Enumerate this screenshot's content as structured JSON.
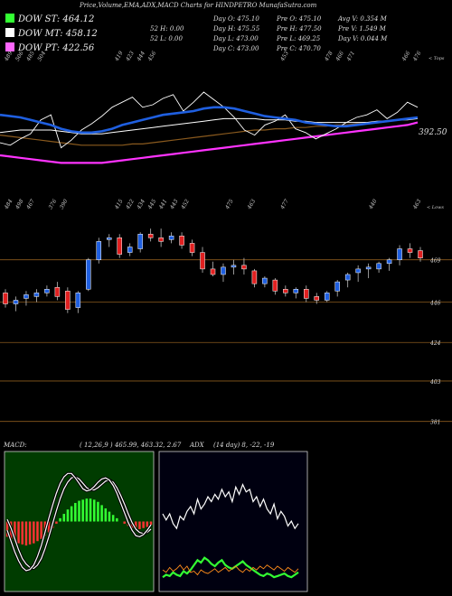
{
  "header": {
    "title": "Price,Volume,EMA,ADX,MACD Charts for HINDPETRO MunafaSutra.com",
    "stats": [
      [
        "Day O: 475.10",
        "Pre O: 475.10",
        "Avg V: 0.354  M"
      ],
      [
        "52 H: 0.00",
        "Day H: 475.55",
        "Pre H: 477.50",
        "Pre V: 1.549 M"
      ],
      [
        "52 L: 0.00",
        "Day L: 473.00",
        "Pre L: 469.25",
        "Day V: 0.044  M"
      ],
      [
        "Day C: 473.00",
        "Pre C: 470.70"
      ]
    ]
  },
  "legend": [
    {
      "label": "DOW ST: 464.12",
      "color": "#33ff33"
    },
    {
      "label": "DOW MT: 458.12",
      "color": "#ffffff"
    },
    {
      "label": "DOW PT: 422.56",
      "color": "#ff66ff"
    }
  ],
  "price_label": "392.50",
  "top_corner": "< Tops",
  "low_corner": "< Lows",
  "macd_label": "MACD:",
  "macd_params": "( 12,26,9 ) 465.99, 463.32, 2.67",
  "adx_label": "ADX",
  "adx_params": "(14  day) 8, -22, -19",
  "colors": {
    "up": "#1f5fe0",
    "down": "#e02020",
    "grid": "#8a5a1e"
  },
  "chart_data": [
    {
      "type": "line",
      "name": "EMA panel",
      "top_labels": [
        "489",
        "506",
        "485",
        "504",
        "",
        "",
        "",
        "",
        "",
        "",
        "419",
        "423",
        "444",
        "456",
        "",
        "",
        "",
        "",
        "",
        "",
        "",
        "",
        "",
        "",
        "",
        "453",
        "",
        "",
        "",
        "478",
        "466",
        "471",
        "",
        "",
        "",
        "",
        "466",
        "476"
      ],
      "low_labels": [
        "484",
        "498",
        "467",
        "",
        "376",
        "390",
        "",
        "",
        "",
        "",
        "415",
        "422",
        "434",
        "445",
        "441",
        "443",
        "452",
        "",
        "",
        "",
        "475",
        "",
        "463",
        "",
        "",
        "477",
        "",
        "",
        "",
        "",
        "",
        "",
        "",
        "440",
        "",
        "",
        "",
        "463"
      ],
      "close": [
        430,
        428,
        433,
        437,
        448,
        452,
        426,
        432,
        440,
        445,
        451,
        458,
        462,
        466,
        458,
        460,
        465,
        468,
        455,
        462,
        470,
        464,
        458,
        450,
        440,
        436,
        444,
        447,
        452,
        441,
        438,
        433,
        437,
        441,
        446,
        450,
        452,
        456,
        449,
        454,
        462,
        458
      ],
      "ema_short": [
        452,
        451,
        450,
        448,
        446,
        444,
        441,
        439,
        438,
        438,
        439,
        441,
        444,
        446,
        448,
        450,
        452,
        453,
        454,
        455,
        457,
        458,
        458,
        457,
        455,
        453,
        451,
        450,
        449,
        448,
        446,
        445,
        444,
        443,
        443,
        444,
        445,
        446,
        447,
        448,
        449,
        450
      ],
      "ema_mid": [
        438,
        439,
        440,
        440,
        440,
        440,
        439,
        438,
        437,
        437,
        437,
        438,
        439,
        440,
        441,
        442,
        443,
        444,
        445,
        446,
        447,
        448,
        449,
        449,
        449,
        449,
        448,
        448,
        448,
        447,
        447,
        446,
        446,
        446,
        446,
        446,
        446,
        447,
        447,
        448,
        448,
        449
      ],
      "ema_long": [
        436,
        435,
        434,
        433,
        432,
        431,
        430,
        429,
        428,
        428,
        428,
        428,
        428,
        429,
        429,
        430,
        431,
        432,
        433,
        434,
        435,
        436,
        437,
        438,
        439,
        440,
        440,
        441,
        441,
        442,
        442,
        443,
        443,
        444,
        444,
        445,
        445,
        446,
        447,
        448,
        449,
        450
      ],
      "ema_pt": [
        420,
        419,
        418,
        417,
        416,
        415,
        414,
        414,
        414,
        414,
        414,
        415,
        416,
        417,
        418,
        419,
        420,
        421,
        422,
        423,
        424,
        425,
        426,
        427,
        428,
        429,
        430,
        431,
        432,
        433,
        434,
        435,
        436,
        437,
        438,
        439,
        440,
        441,
        442,
        443,
        444,
        446
      ],
      "ylim": [
        400,
        475
      ]
    },
    {
      "type": "candlestick",
      "name": "Price panel",
      "y_tick_labels": [
        "469",
        "446",
        "424",
        "403",
        "381"
      ],
      "y_ticks": [
        469,
        446,
        424,
        403,
        381
      ],
      "ylim": [
        372,
        490
      ],
      "candles": [
        {
          "o": 451,
          "h": 453,
          "l": 443,
          "c": 445
        },
        {
          "o": 445,
          "h": 449,
          "l": 441,
          "c": 447
        },
        {
          "o": 448,
          "h": 452,
          "l": 444,
          "c": 450
        },
        {
          "o": 449,
          "h": 453,
          "l": 446,
          "c": 451
        },
        {
          "o": 451,
          "h": 455,
          "l": 449,
          "c": 453
        },
        {
          "o": 454,
          "h": 457,
          "l": 447,
          "c": 449
        },
        {
          "o": 452,
          "h": 454,
          "l": 440,
          "c": 442
        },
        {
          "o": 443,
          "h": 452,
          "l": 440,
          "c": 451
        },
        {
          "o": 453,
          "h": 470,
          "l": 452,
          "c": 469
        },
        {
          "o": 469,
          "h": 481,
          "l": 467,
          "c": 479
        },
        {
          "o": 480,
          "h": 483,
          "l": 476,
          "c": 481
        },
        {
          "o": 481,
          "h": 483,
          "l": 470,
          "c": 472
        },
        {
          "o": 473,
          "h": 478,
          "l": 471,
          "c": 476
        },
        {
          "o": 475,
          "h": 484,
          "l": 473,
          "c": 483
        },
        {
          "o": 483,
          "h": 486,
          "l": 479,
          "c": 481
        },
        {
          "o": 481,
          "h": 486,
          "l": 476,
          "c": 479
        },
        {
          "o": 480,
          "h": 484,
          "l": 478,
          "c": 482
        },
        {
          "o": 482,
          "h": 484,
          "l": 475,
          "c": 477
        },
        {
          "o": 478,
          "h": 480,
          "l": 471,
          "c": 473
        },
        {
          "o": 473,
          "h": 476,
          "l": 462,
          "c": 464
        },
        {
          "o": 464,
          "h": 468,
          "l": 460,
          "c": 461
        },
        {
          "o": 461,
          "h": 467,
          "l": 457,
          "c": 465
        },
        {
          "o": 465,
          "h": 469,
          "l": 461,
          "c": 466
        },
        {
          "o": 466,
          "h": 470,
          "l": 461,
          "c": 464
        },
        {
          "o": 463,
          "h": 464,
          "l": 454,
          "c": 456
        },
        {
          "o": 456,
          "h": 460,
          "l": 454,
          "c": 459
        },
        {
          "o": 458,
          "h": 459,
          "l": 450,
          "c": 452
        },
        {
          "o": 453,
          "h": 455,
          "l": 449,
          "c": 451
        },
        {
          "o": 451,
          "h": 454,
          "l": 448,
          "c": 453
        },
        {
          "o": 453,
          "h": 455,
          "l": 446,
          "c": 448
        },
        {
          "o": 449,
          "h": 451,
          "l": 445,
          "c": 447
        },
        {
          "o": 447,
          "h": 452,
          "l": 446,
          "c": 451
        },
        {
          "o": 452,
          "h": 458,
          "l": 449,
          "c": 457
        },
        {
          "o": 458,
          "h": 462,
          "l": 454,
          "c": 461
        },
        {
          "o": 462,
          "h": 466,
          "l": 457,
          "c": 464
        },
        {
          "o": 464,
          "h": 467,
          "l": 459,
          "c": 465
        },
        {
          "o": 464,
          "h": 468,
          "l": 462,
          "c": 467
        },
        {
          "o": 467,
          "h": 470,
          "l": 463,
          "c": 469
        },
        {
          "o": 469,
          "h": 477,
          "l": 466,
          "c": 475
        },
        {
          "o": 475,
          "h": 478,
          "l": 470,
          "c": 473
        },
        {
          "o": 474,
          "h": 476,
          "l": 468,
          "c": 470
        }
      ]
    },
    {
      "type": "bar",
      "name": "MACD histogram",
      "values": [
        -1.4,
        -1.6,
        -1.8,
        -2.0,
        -2.1,
        -2.2,
        -2.1,
        -2.0,
        -1.8,
        -1.6,
        -1.3,
        -1.0,
        -0.6,
        -0.2,
        0.3,
        0.7,
        1.1,
        1.4,
        1.7,
        1.9,
        2.0,
        2.1,
        2.1,
        2.0,
        1.8,
        1.5,
        1.2,
        0.9,
        0.6,
        0.3,
        0,
        -0.2,
        -0.4,
        -0.6,
        -0.7,
        -0.7,
        -0.6,
        -0.5,
        -0.3
      ],
      "macd": [
        -0.8,
        -1.8,
        -2.8,
        -3.6,
        -4.2,
        -4.5,
        -4.4,
        -4.0,
        -3.2,
        -2.2,
        -1.0,
        0.3,
        1.5,
        2.6,
        3.5,
        4.1,
        4.4,
        4.4,
        4.0,
        3.5,
        3.0,
        2.8,
        2.9,
        3.2,
        3.6,
        3.9,
        4.0,
        3.8,
        3.3,
        2.6,
        1.7,
        0.8,
        -0.1,
        -0.8,
        -1.3,
        -1.4,
        -1.2,
        -0.8,
        -0.3
      ],
      "signal": [
        0.2,
        -0.6,
        -1.6,
        -2.6,
        -3.4,
        -3.9,
        -4.2,
        -4.3,
        -4.0,
        -3.4,
        -2.5,
        -1.4,
        -0.2,
        1.0,
        2.1,
        3.0,
        3.6,
        4.0,
        4.1,
        3.9,
        3.5,
        3.1,
        2.9,
        2.9,
        3.1,
        3.4,
        3.7,
        3.8,
        3.6,
        3.1,
        2.4,
        1.6,
        0.7,
        -0.1,
        -0.7,
        -1.0,
        -1.1,
        -1.0,
        -0.7
      ],
      "ylim": [
        -6,
        6
      ]
    },
    {
      "type": "line",
      "name": "ADX",
      "series": [
        {
          "values": [
            60,
            55,
            60,
            52,
            48,
            58,
            55,
            62,
            66,
            60,
            72,
            64,
            68,
            74,
            70,
            76,
            72,
            80,
            74,
            78,
            70,
            82,
            76,
            84,
            78,
            80,
            70,
            74,
            66,
            72,
            64,
            60,
            68,
            56,
            62,
            58,
            50,
            54,
            48,
            52
          ]
        },
        {
          "values": [
            8,
            10,
            9,
            12,
            10,
            9,
            13,
            11,
            14,
            18,
            22,
            20,
            24,
            22,
            19,
            17,
            20,
            22,
            18,
            16,
            15,
            17,
            19,
            21,
            18,
            16,
            14,
            12,
            10,
            9,
            11,
            10,
            8,
            9,
            10,
            11,
            9,
            8,
            10,
            12
          ]
        },
        {
          "values": [
            14,
            12,
            16,
            13,
            15,
            18,
            14,
            17,
            12,
            13,
            10,
            14,
            12,
            11,
            13,
            15,
            12,
            14,
            16,
            13,
            15,
            17,
            14,
            12,
            15,
            13,
            16,
            14,
            17,
            15,
            18,
            16,
            14,
            17,
            15,
            13,
            16,
            14,
            12,
            15
          ]
        }
      ],
      "ylim": [
        0,
        100
      ]
    }
  ]
}
